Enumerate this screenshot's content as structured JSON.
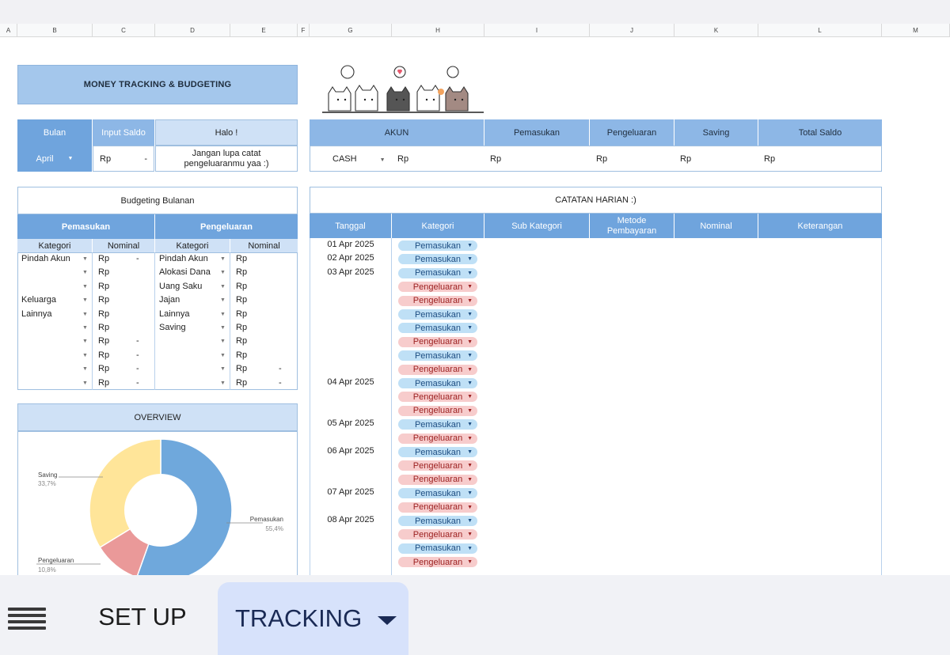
{
  "columns": [
    "A",
    "B",
    "C",
    "D",
    "E",
    "F",
    "G",
    "H",
    "I",
    "J",
    "K",
    "L",
    "M"
  ],
  "title": "MONEY TRACKING & BUDGETING",
  "month": {
    "header": "Bulan",
    "value": "April"
  },
  "input_saldo": {
    "header": "Input Saldo",
    "currency": "Rp",
    "value": "-"
  },
  "greeting": {
    "header": "Halo !",
    "message": "Jangan lupa catat pengeluaranmu yaa :)"
  },
  "accounts": {
    "headers": [
      "AKUN",
      "Pemasukan",
      "Pengeluaran",
      "Saving",
      "Total Saldo"
    ],
    "row": {
      "akun": "CASH",
      "akun_rp": "Rp",
      "pemasukan": "Rp",
      "pengeluaran": "Rp",
      "saving": "Rp",
      "total": "Rp"
    }
  },
  "budgeting": {
    "title": "Budgeting Bulanan",
    "income_header": "Pemasukan",
    "expense_header": "Pengeluaran",
    "sub_kategori": "Kategori",
    "sub_nominal": "Nominal",
    "income_rows": [
      {
        "cat": "Pindah Akun",
        "rp": "Rp",
        "val": "-"
      },
      {
        "cat": "",
        "rp": "Rp",
        "val": ""
      },
      {
        "cat": "",
        "rp": "Rp",
        "val": ""
      },
      {
        "cat": "Keluarga",
        "rp": "Rp",
        "val": ""
      },
      {
        "cat": "Lainnya",
        "rp": "Rp",
        "val": ""
      },
      {
        "cat": "",
        "rp": "Rp",
        "val": ""
      },
      {
        "cat": "",
        "rp": "Rp",
        "val": "-"
      },
      {
        "cat": "",
        "rp": "Rp",
        "val": "-"
      },
      {
        "cat": "",
        "rp": "Rp",
        "val": "-"
      },
      {
        "cat": "",
        "rp": "Rp",
        "val": "-"
      }
    ],
    "expense_rows": [
      {
        "cat": "Pindah Akun",
        "rp": "Rp",
        "val": ""
      },
      {
        "cat": "Alokasi Dana",
        "rp": "Rp",
        "val": ""
      },
      {
        "cat": "Uang Saku",
        "rp": "Rp",
        "val": ""
      },
      {
        "cat": "Jajan",
        "rp": "Rp",
        "val": ""
      },
      {
        "cat": "Lainnya",
        "rp": "Rp",
        "val": ""
      },
      {
        "cat": "Saving",
        "rp": "Rp",
        "val": ""
      },
      {
        "cat": "",
        "rp": "Rp",
        "val": ""
      },
      {
        "cat": "",
        "rp": "Rp",
        "val": ""
      },
      {
        "cat": "",
        "rp": "Rp",
        "val": "-"
      },
      {
        "cat": "",
        "rp": "Rp",
        "val": "-"
      }
    ]
  },
  "overview": {
    "title": "OVERVIEW",
    "chart_data": {
      "type": "pie",
      "categories": [
        "Pemasukan",
        "Pengeluaran",
        "Saving"
      ],
      "values": [
        55.4,
        10.8,
        33.7
      ],
      "labels": [
        "55,4%",
        "10,8%",
        "33,7%"
      ],
      "colors": [
        "#6fa8dc",
        "#ea9999",
        "#ffe599"
      ]
    }
  },
  "catatan": {
    "title": "CATATAN HARIAN :)",
    "headers": [
      "Tanggal",
      "Kategori",
      "Sub Kategori",
      "Metode Pembayaran",
      "Nominal",
      "Keterangan"
    ],
    "rows": [
      {
        "date": "01 Apr 2025",
        "kategori": "Pemasukan"
      },
      {
        "date": "02 Apr 2025",
        "kategori": "Pemasukan"
      },
      {
        "date": "03 Apr 2025",
        "kategori": "Pemasukan"
      },
      {
        "date": "",
        "kategori": "Pengeluaran"
      },
      {
        "date": "",
        "kategori": "Pengeluaran"
      },
      {
        "date": "",
        "kategori": "Pemasukan"
      },
      {
        "date": "",
        "kategori": "Pemasukan"
      },
      {
        "date": "",
        "kategori": "Pengeluaran"
      },
      {
        "date": "",
        "kategori": "Pemasukan"
      },
      {
        "date": "",
        "kategori": "Pengeluaran"
      },
      {
        "date": "04 Apr 2025",
        "kategori": "Pemasukan"
      },
      {
        "date": "",
        "kategori": "Pengeluaran"
      },
      {
        "date": "",
        "kategori": "Pengeluaran"
      },
      {
        "date": "05 Apr 2025",
        "kategori": "Pemasukan"
      },
      {
        "date": "",
        "kategori": "Pengeluaran"
      },
      {
        "date": "06 Apr 2025",
        "kategori": "Pemasukan"
      },
      {
        "date": "",
        "kategori": "Pengeluaran"
      },
      {
        "date": "",
        "kategori": "Pengeluaran"
      },
      {
        "date": "07 Apr 2025",
        "kategori": "Pemasukan"
      },
      {
        "date": "",
        "kategori": "Pengeluaran"
      },
      {
        "date": "08 Apr 2025",
        "kategori": "Pemasukan"
      },
      {
        "date": "",
        "kategori": "Pengeluaran"
      },
      {
        "date": "",
        "kategori": "Pemasukan"
      },
      {
        "date": "",
        "kategori": "Pengeluaran"
      }
    ]
  },
  "tabs": {
    "setup": "SET UP",
    "tracking": "TRACKING"
  },
  "colors": {
    "header_blue": "#6fa4dd",
    "light_blue": "#cfe1f6",
    "income_pill": "#bfe0f6",
    "expense_pill": "#f7cccc"
  }
}
